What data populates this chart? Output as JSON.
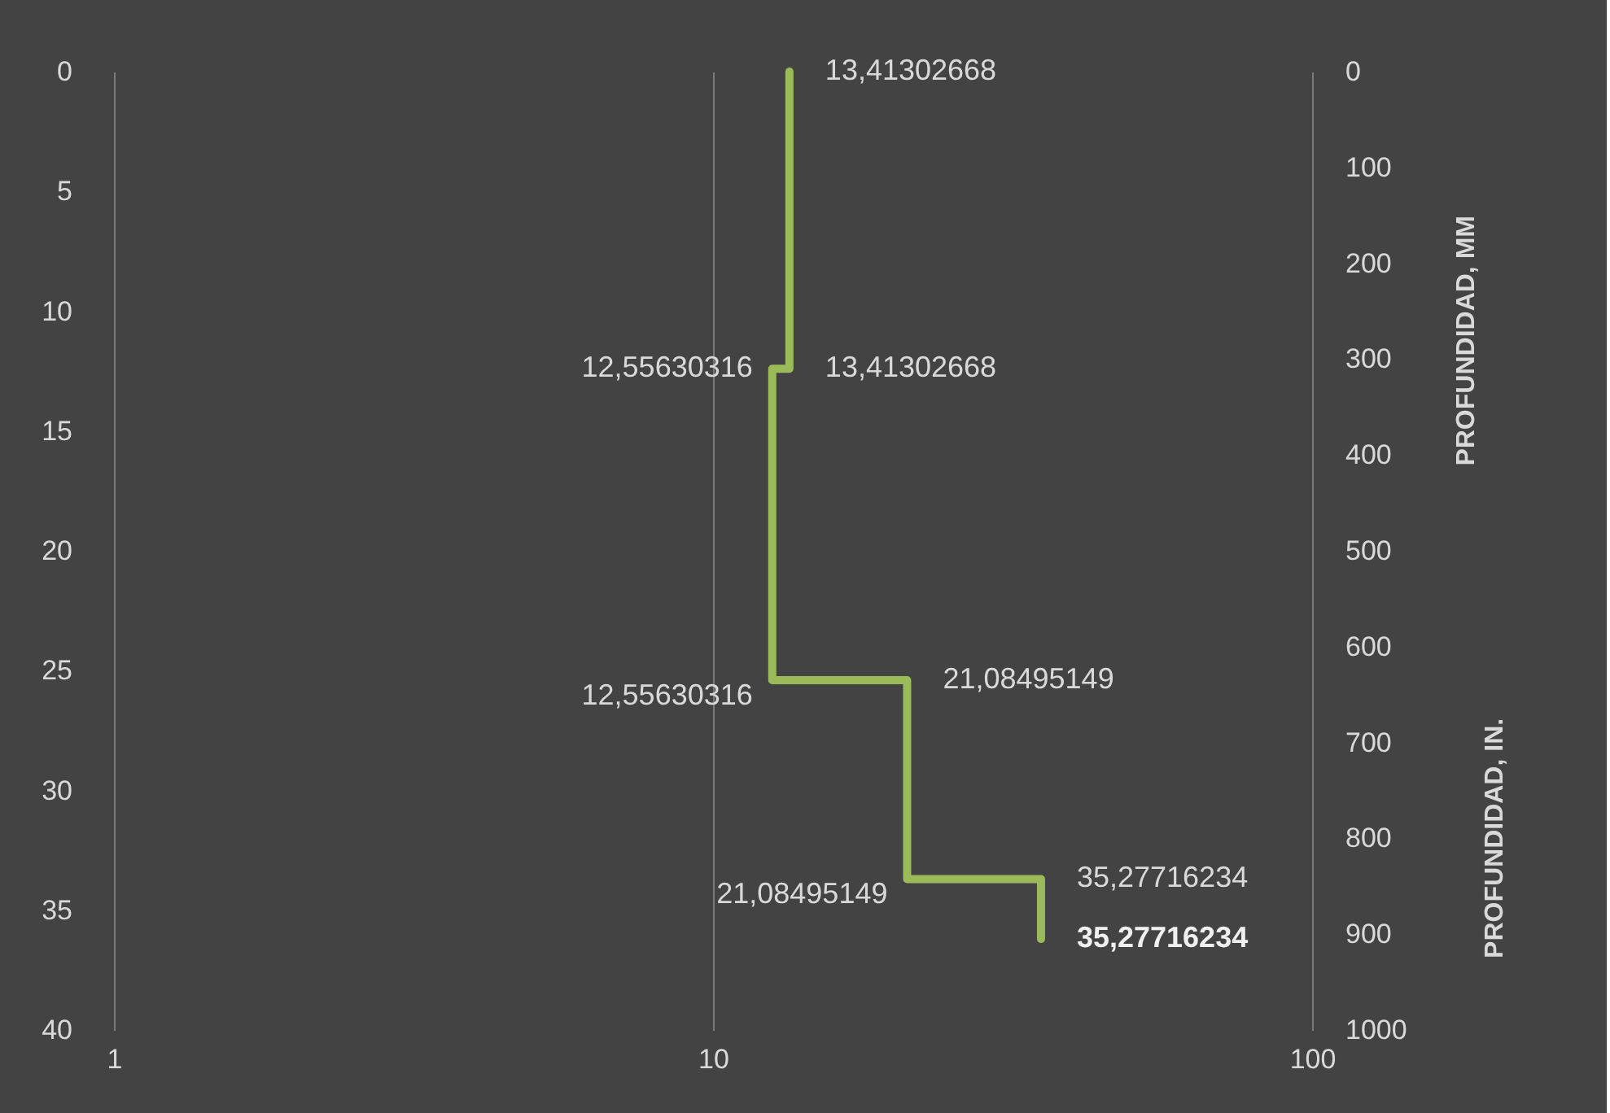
{
  "chart_data": {
    "type": "line",
    "x": [
      13.41302668,
      13.41302668,
      12.55630316,
      12.55630316,
      21.08495149,
      21.08495149,
      35.27716234,
      35.27716234
    ],
    "series": [
      {
        "color": "#9bbb59",
        "values": [
          0,
          12.4,
          12.4,
          25.4,
          25.4,
          33.7,
          33.7,
          36.2
        ]
      }
    ],
    "log": "x",
    "xlim": [
      1,
      100
    ],
    "xticks": [
      1,
      10,
      100
    ],
    "ylim": [
      40,
      0
    ],
    "yticks": [
      0,
      5,
      10,
      15,
      20,
      25,
      30,
      35,
      40
    ],
    "y2lim": [
      1000,
      0
    ],
    "y2ticks": [
      0,
      100,
      200,
      300,
      400,
      500,
      600,
      700,
      800,
      900,
      1000
    ],
    "y2label": "PROFUNDIDAD, MM",
    "grid": "x",
    "marker": "none",
    "line_style": "solid",
    "annotations": [
      {
        "text": "13,41302668",
        "x": 13.41302668,
        "y": 0
      },
      {
        "text": "13,41302668",
        "x": 13.41302668,
        "y": 12.4
      },
      {
        "text": "12,55630316",
        "x": 12.55630316,
        "y": 12.4
      },
      {
        "text": "12,55630316",
        "x": 12.55630316,
        "y": 25.4
      },
      {
        "text": "21,08495149",
        "x": 21.08495149,
        "y": 25.4
      },
      {
        "text": "21,08495149",
        "x": 21.08495149,
        "y": 33.7
      },
      {
        "text": "35,27716234",
        "x": 35.27716234,
        "y": 33.7
      },
      {
        "text": "35,27716234",
        "x": 35.27716234,
        "y": 36.2
      },
      "PROFUNDIDAD, IN."
    ]
  }
}
